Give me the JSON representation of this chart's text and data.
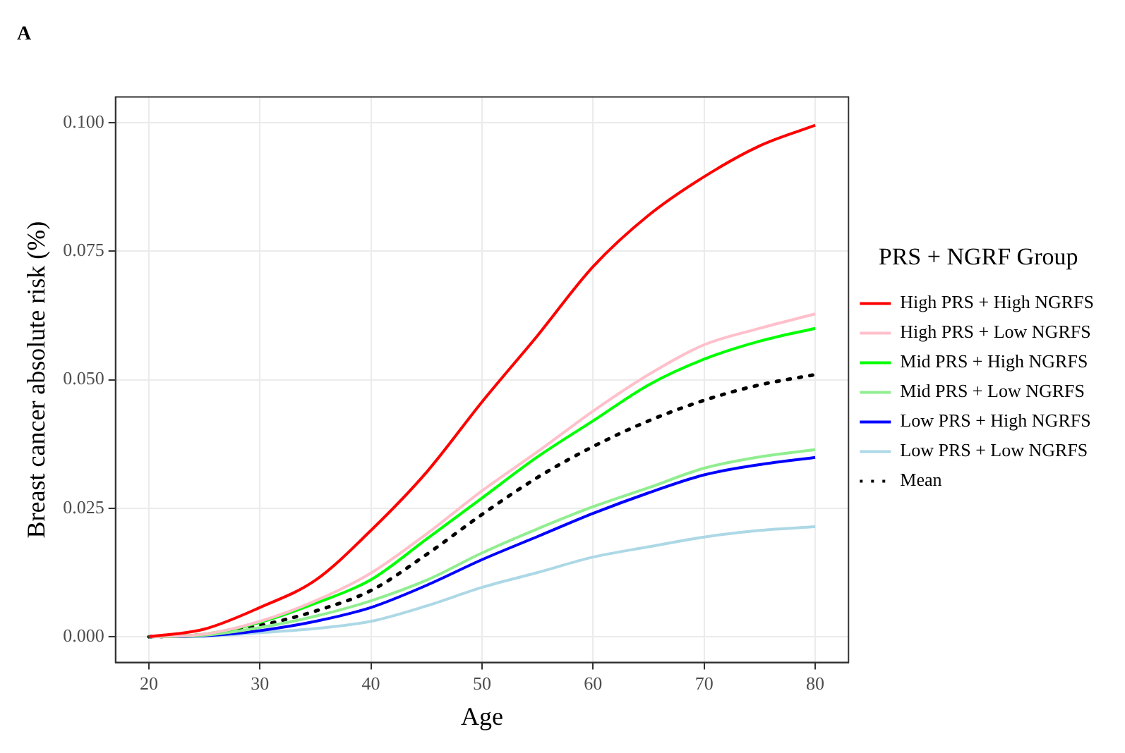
{
  "chart_data": {
    "type": "line",
    "title": "A",
    "xlabel": "Age",
    "ylabel": "Breast cancer absolute risk (%)",
    "legend_title": "PRS + NGRF Group",
    "x": [
      20,
      25,
      30,
      35,
      40,
      45,
      50,
      55,
      60,
      65,
      70,
      75,
      80
    ],
    "series": [
      {
        "name": "High PRS + High NGRFS",
        "color": "#ff0000",
        "values": [
          0,
          0.0015,
          0.0057,
          0.011,
          0.0207,
          0.032,
          0.0457,
          0.0586,
          0.072,
          0.082,
          0.0895,
          0.0955,
          0.0995
        ]
      },
      {
        "name": "High PRS + Low NGRFS",
        "color": "#ffc0cb",
        "values": [
          0,
          0.0005,
          0.003,
          0.007,
          0.0124,
          0.02,
          0.0284,
          0.036,
          0.0439,
          0.051,
          0.0568,
          0.06,
          0.0628
        ]
      },
      {
        "name": "Mid PRS + High NGRFS",
        "color": "#00ff00",
        "values": [
          0,
          0.0005,
          0.0028,
          0.0065,
          0.0111,
          0.019,
          0.027,
          0.035,
          0.042,
          0.049,
          0.054,
          0.0575,
          0.06
        ]
      },
      {
        "name": "Mid PRS + Low NGRFS",
        "color": "#90ee90",
        "values": [
          0,
          0.0003,
          0.0018,
          0.004,
          0.007,
          0.011,
          0.0163,
          0.021,
          0.0253,
          0.029,
          0.0328,
          0.035,
          0.0364
        ]
      },
      {
        "name": "Low PRS + High NGRFS",
        "color": "#0000ff",
        "values": [
          0,
          0.0002,
          0.0012,
          0.003,
          0.0057,
          0.01,
          0.015,
          0.0195,
          0.024,
          0.028,
          0.0315,
          0.0335,
          0.0349
        ]
      },
      {
        "name": "Low PRS + Low NGRFS",
        "color": "#add8e6",
        "values": [
          0,
          0.0001,
          0.0008,
          0.0016,
          0.003,
          0.006,
          0.0096,
          0.0125,
          0.0155,
          0.0175,
          0.0194,
          0.0207,
          0.0214
        ]
      },
      {
        "name": "Mean",
        "color": "#000000",
        "line_style": "dotted",
        "values": [
          0,
          0.0004,
          0.0022,
          0.005,
          0.009,
          0.016,
          0.0238,
          0.031,
          0.037,
          0.042,
          0.046,
          0.049,
          0.051
        ]
      }
    ],
    "xlim": [
      17,
      83
    ],
    "xticks": [
      20,
      30,
      40,
      50,
      60,
      70,
      80
    ],
    "ylim": [
      -0.005,
      0.105
    ],
    "yticks": [
      {
        "value": 0,
        "label": "0.000"
      },
      {
        "value": 0.025,
        "label": "0.025"
      },
      {
        "value": 0.05,
        "label": "0.050"
      },
      {
        "value": 0.075,
        "label": "0.075"
      },
      {
        "value": 0.1,
        "label": "0.100"
      }
    ],
    "grid": true,
    "legend": "right",
    "marker": "none",
    "line_style": "solid"
  }
}
